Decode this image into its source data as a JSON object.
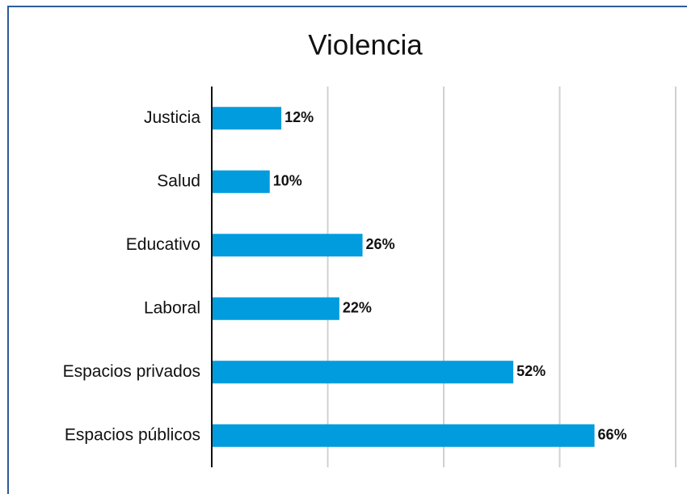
{
  "chart_data": {
    "type": "barh",
    "title": "Violencia",
    "categories": [
      "Justicia",
      "Salud",
      "Educativo",
      "Laboral",
      "Espacios privados",
      "Espacios públicos"
    ],
    "values": [
      12,
      10,
      26,
      22,
      52,
      66
    ],
    "value_labels": [
      "12%",
      "10%",
      "26%",
      "22%",
      "52%",
      "66%"
    ],
    "color": "#009cde",
    "xlim": [
      0,
      80
    ],
    "xticks": [
      0,
      20,
      40,
      60,
      80
    ],
    "grid": true
  }
}
